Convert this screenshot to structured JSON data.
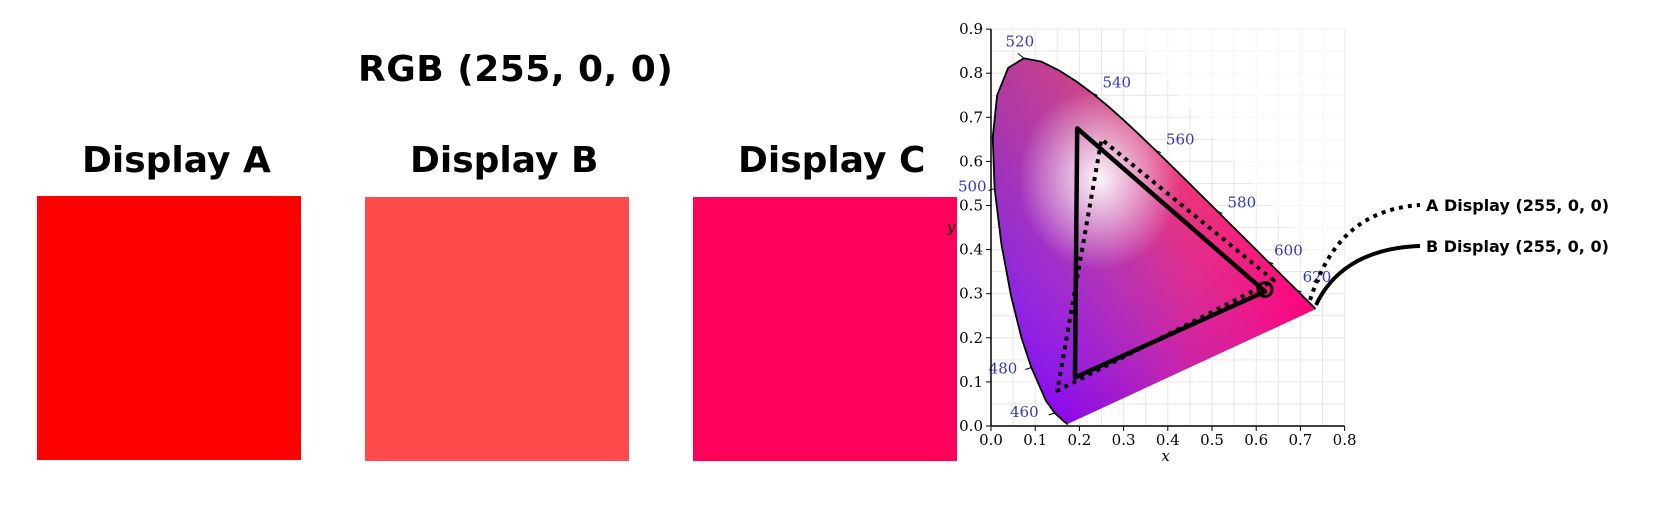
{
  "title": "RGB (255, 0, 0)",
  "colors": {
    "display_a": "#ff0000",
    "display_b": "#ff4b4b",
    "display_c": "#ff005a"
  },
  "displays": [
    {
      "label": "Display A",
      "color": "#ff0000"
    },
    {
      "label": "Display B",
      "color": "#ff4b4b"
    },
    {
      "label": "Display C",
      "color": "#ff005a"
    }
  ],
  "chromaticity_diagram": {
    "x_axis_label": "x",
    "y_axis_label": "y",
    "x_ticks": [
      "0.0",
      "0.1",
      "0.2",
      "0.3",
      "0.4",
      "0.5",
      "0.6",
      "0.7",
      "0.8"
    ],
    "y_ticks": [
      "0.0",
      "0.1",
      "0.2",
      "0.3",
      "0.4",
      "0.5",
      "0.6",
      "0.7",
      "0.8",
      "0.9"
    ],
    "wavelength_labels": [
      "460",
      "480",
      "500",
      "520",
      "540",
      "560",
      "580",
      "600",
      "620"
    ],
    "gamut_a": {
      "style": "dotted",
      "points": [
        [
          0.64,
          0.33
        ],
        [
          0.25,
          0.65
        ],
        [
          0.15,
          0.08
        ]
      ]
    },
    "gamut_b": {
      "style": "solid",
      "points": [
        [
          0.62,
          0.305
        ],
        [
          0.195,
          0.675
        ],
        [
          0.19,
          0.11
        ]
      ]
    },
    "callouts": [
      {
        "label": "A Display (255, 0, 0)",
        "style": "dotted"
      },
      {
        "label": "B Display (255, 0, 0)",
        "style": "solid"
      }
    ]
  }
}
